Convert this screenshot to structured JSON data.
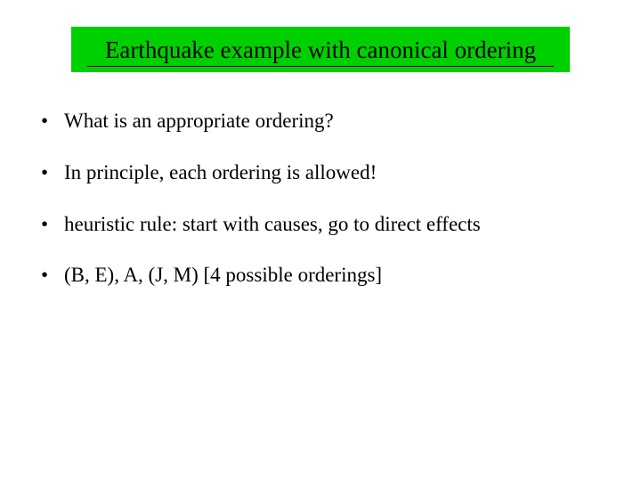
{
  "slide": {
    "title": "Earthquake example with canonical ordering",
    "title_background_color": "#00d000",
    "title_text_color": "#000000",
    "title_fontsize": 27,
    "background_color": "#ffffff",
    "bullet_fontsize": 23,
    "bullet_text_color": "#000000",
    "bullets": [
      {
        "text": "What is an appropriate ordering?"
      },
      {
        "text": "In principle, each ordering is allowed!"
      },
      {
        "text": "heuristic rule: start with causes, go to direct effects"
      },
      {
        "text": "(B, E), A, (J, M)  [4 possible orderings]"
      }
    ]
  }
}
